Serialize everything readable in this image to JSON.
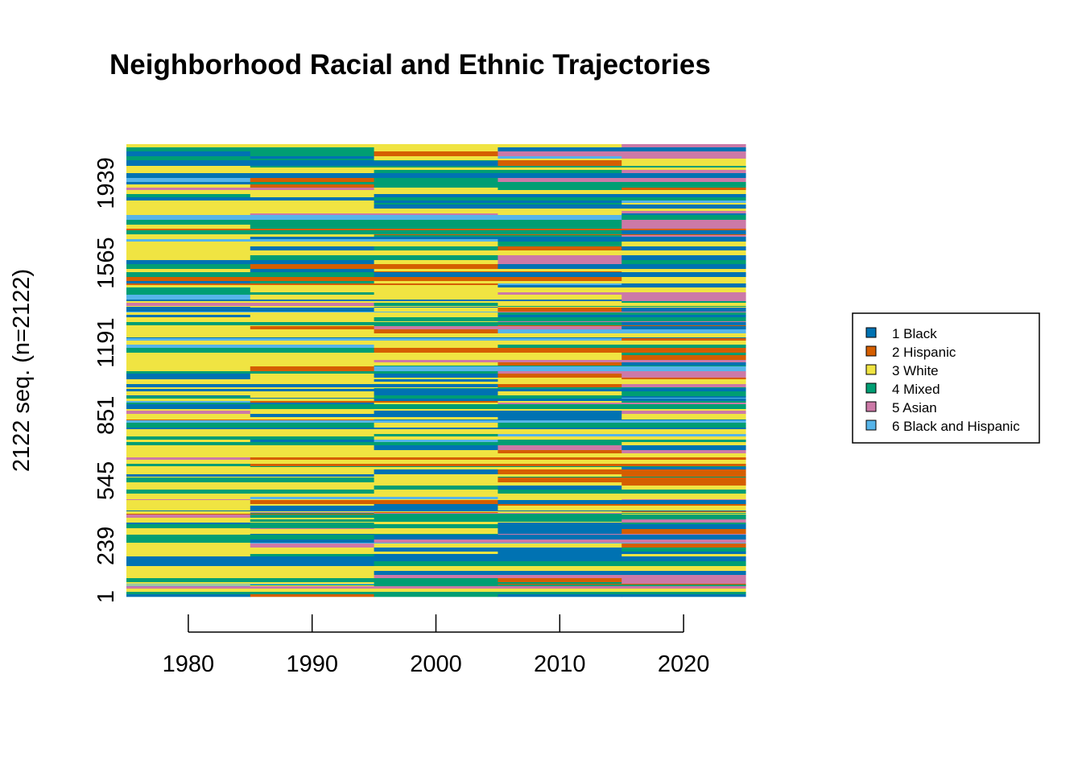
{
  "chart_data": {
    "type": "heatmap",
    "title": "Neighborhood Racial and Ethnic Trajectories",
    "xlabel": "",
    "ylabel": "2122 seq. (n=2122)",
    "x_ticks": [
      "1980",
      "1990",
      "2000",
      "2010",
      "2020"
    ],
    "y_ticks": [
      1,
      239,
      545,
      851,
      1191,
      1565,
      1939
    ],
    "y_tick_labels": [
      "1",
      "239",
      "545",
      "851",
      "1191",
      "1565",
      "1939"
    ],
    "n_sequences": 2122,
    "ylim": [
      1,
      2122
    ],
    "legend": {
      "placement": "right",
      "entries": [
        {
          "label": "1 Black",
          "color": "#0072B2"
        },
        {
          "label": "2 Hispanic",
          "color": "#D55E00"
        },
        {
          "label": "3 White",
          "color": "#F0E442"
        },
        {
          "label": "4 Mixed",
          "color": "#009E73"
        },
        {
          "label": "5 Asian",
          "color": "#CC79A7"
        },
        {
          "label": "6 Black and Hispanic",
          "color": "#56B4E9"
        }
      ]
    },
    "state_shares_by_decade": [
      {
        "decade": "1980",
        "Black": 0.2,
        "Hispanic": 0.05,
        "White": 0.45,
        "Mixed": 0.2,
        "Asian": 0.03,
        "Black and Hispanic": 0.07
      },
      {
        "decade": "1990",
        "Black": 0.2,
        "Hispanic": 0.1,
        "White": 0.35,
        "Mixed": 0.25,
        "Asian": 0.05,
        "Black and Hispanic": 0.05
      },
      {
        "decade": "2000",
        "Black": 0.22,
        "Hispanic": 0.15,
        "White": 0.25,
        "Mixed": 0.25,
        "Asian": 0.08,
        "Black and Hispanic": 0.05
      },
      {
        "decade": "2010",
        "Black": 0.22,
        "Hispanic": 0.18,
        "White": 0.2,
        "Mixed": 0.22,
        "Asian": 0.13,
        "Black and Hispanic": 0.05
      },
      {
        "decade": "2020",
        "Black": 0.2,
        "Hispanic": 0.18,
        "White": 0.15,
        "Mixed": 0.22,
        "Asian": 0.18,
        "Black and Hispanic": 0.07
      }
    ]
  }
}
